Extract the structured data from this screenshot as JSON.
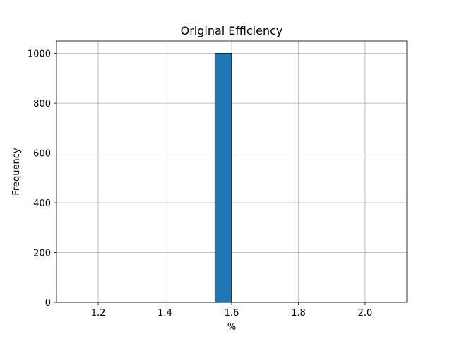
{
  "chart_data": {
    "type": "bar",
    "title": "Original Efficiency",
    "xlabel": "%",
    "ylabel": "Frequency",
    "xlim": [
      1.075,
      2.125
    ],
    "ylim": [
      0,
      1050
    ],
    "xticks": [
      1.2,
      1.4,
      1.6,
      1.8,
      2.0
    ],
    "xtick_labels": [
      "1.2",
      "1.4",
      "1.6",
      "1.8",
      "2.0"
    ],
    "yticks": [
      0,
      200,
      400,
      600,
      800,
      1000
    ],
    "ytick_labels": [
      "0",
      "200",
      "400",
      "600",
      "800",
      "1000"
    ],
    "grid": true,
    "bins": [
      {
        "x0": 1.1,
        "x1": 1.15,
        "value": 0
      },
      {
        "x0": 1.15,
        "x1": 1.2,
        "value": 0
      },
      {
        "x0": 1.2,
        "x1": 1.25,
        "value": 0
      },
      {
        "x0": 1.25,
        "x1": 1.3,
        "value": 0
      },
      {
        "x0": 1.3,
        "x1": 1.35,
        "value": 0
      },
      {
        "x0": 1.35,
        "x1": 1.4,
        "value": 0
      },
      {
        "x0": 1.4,
        "x1": 1.45,
        "value": 0
      },
      {
        "x0": 1.45,
        "x1": 1.5,
        "value": 0
      },
      {
        "x0": 1.5,
        "x1": 1.55,
        "value": 0
      },
      {
        "x0": 1.55,
        "x1": 1.6,
        "value": 1000
      },
      {
        "x0": 1.6,
        "x1": 1.65,
        "value": 0
      },
      {
        "x0": 1.65,
        "x1": 1.7,
        "value": 0
      },
      {
        "x0": 1.7,
        "x1": 1.75,
        "value": 0
      },
      {
        "x0": 1.75,
        "x1": 1.8,
        "value": 0
      },
      {
        "x0": 1.8,
        "x1": 1.85,
        "value": 0
      },
      {
        "x0": 1.85,
        "x1": 1.9,
        "value": 0
      },
      {
        "x0": 1.9,
        "x1": 1.95,
        "value": 0
      },
      {
        "x0": 1.95,
        "x1": 2.0,
        "value": 0
      },
      {
        "x0": 2.0,
        "x1": 2.05,
        "value": 0
      },
      {
        "x0": 2.05,
        "x1": 2.1,
        "value": 0
      }
    ],
    "bar_color": "#1f77b4",
    "edge_color": "#000000"
  }
}
